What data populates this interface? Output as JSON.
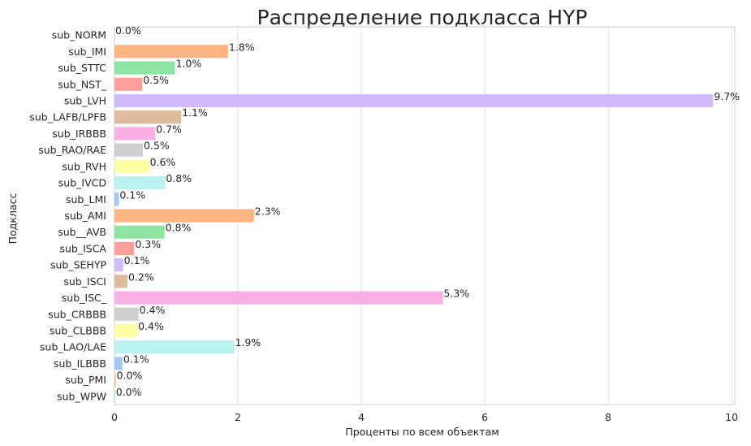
{
  "chart_data": {
    "type": "bar",
    "orientation": "horizontal",
    "title": "Распределение подкласса HYP",
    "xlabel": "Проценты по всем объектам",
    "ylabel": "Подкласс",
    "xlim": [
      0,
      10.05
    ],
    "x_ticks": [
      "0",
      "2",
      "4",
      "6",
      "8",
      "10"
    ],
    "x_tick_values": [
      0,
      2,
      4,
      6,
      8,
      10
    ],
    "grid": true,
    "categories": [
      "sub_NORM",
      "sub_IMI",
      "sub_STTC",
      "sub_NST_",
      "sub_LVH",
      "sub_LAFB/LPFB",
      "sub_IRBBB",
      "sub_RAO/RAE",
      "sub_RVH",
      "sub_IVCD",
      "sub_LMI",
      "sub_AMI",
      "sub__AVB",
      "sub_ISCA",
      "sub_SEHYP",
      "sub_ISCI",
      "sub_ISC_",
      "sub_CRBBB",
      "sub_CLBBB",
      "sub_LAO/LAE",
      "sub_ILBBB",
      "sub_PMI",
      "sub_WPW"
    ],
    "values": [
      0.0,
      1.84,
      0.98,
      0.45,
      9.7,
      1.08,
      0.66,
      0.46,
      0.56,
      0.82,
      0.07,
      2.26,
      0.81,
      0.32,
      0.14,
      0.21,
      5.32,
      0.39,
      0.37,
      1.94,
      0.13,
      0.02,
      0.01
    ],
    "data_labels": [
      "0.0%",
      "1.8%",
      "1.0%",
      "0.5%",
      "9.7%",
      "1.1%",
      "0.7%",
      "0.5%",
      "0.6%",
      "0.8%",
      "0.1%",
      "2.3%",
      "0.8%",
      "0.3%",
      "0.1%",
      "0.2%",
      "5.3%",
      "0.4%",
      "0.4%",
      "1.9%",
      "0.1%",
      "0.0%",
      "0.0%"
    ],
    "palette": [
      "#a1c9f4",
      "#ffb482",
      "#8de5a1",
      "#ff9f9b",
      "#d0bbff",
      "#debb9b",
      "#fab0e4",
      "#cfcfcf",
      "#fffea3",
      "#b9f2f0"
    ]
  }
}
